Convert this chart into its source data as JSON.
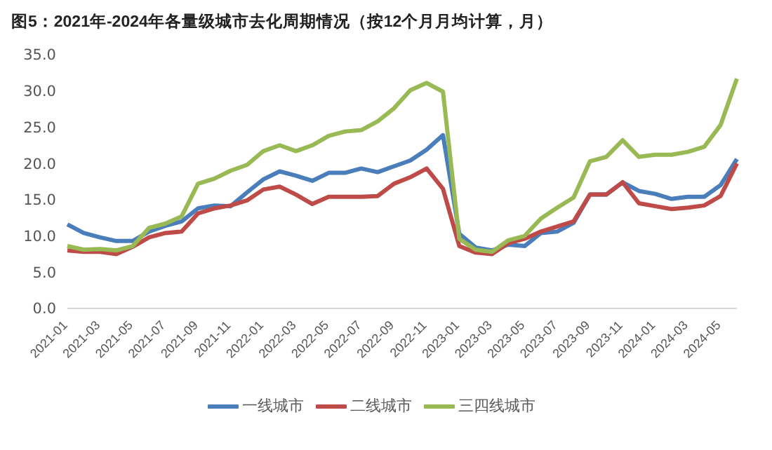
{
  "chart_data": {
    "type": "line",
    "title": "图5：2021年-2024年各量级城市去化周期情况（按12个月月均计算，月）",
    "categories": [
      "2021-01",
      null,
      "2021-03",
      null,
      "2021-05",
      null,
      "2021-07",
      null,
      "2021-09",
      null,
      "2021-11",
      null,
      "2022-01",
      null,
      "2022-03",
      null,
      "2022-05",
      null,
      "2022-07",
      null,
      "2022-09",
      null,
      "2022-11",
      null,
      "2023-01",
      null,
      "2023-03",
      null,
      "2023-05",
      null,
      "2023-07",
      null,
      "2023-09",
      null,
      "2023-11",
      null,
      "2024-01",
      null,
      "2024-03",
      null,
      "2024-05",
      null
    ],
    "series": [
      {
        "name": "一线城市",
        "color": "#4a7ebb",
        "values": [
          11.6,
          10.4,
          9.8,
          9.3,
          9.3,
          10.6,
          11.4,
          12.0,
          13.8,
          14.2,
          14.1,
          16.0,
          17.8,
          18.9,
          18.3,
          17.6,
          18.7,
          18.7,
          19.3,
          18.8,
          19.6,
          20.4,
          21.9,
          23.9,
          10.3,
          8.4,
          8.0,
          8.8,
          8.6,
          10.4,
          10.6,
          11.8,
          15.7,
          15.7,
          17.4,
          16.2,
          15.8,
          15.1,
          15.4,
          15.4,
          17.0,
          20.6
        ]
      },
      {
        "name": "二线城市",
        "color": "#be4b48",
        "values": [
          8.0,
          7.8,
          7.8,
          7.5,
          8.5,
          9.8,
          10.4,
          10.6,
          13.1,
          13.8,
          14.2,
          14.9,
          16.4,
          16.8,
          15.7,
          14.4,
          15.4,
          15.4,
          15.4,
          15.5,
          17.2,
          18.1,
          19.3,
          16.5,
          8.6,
          7.7,
          7.5,
          9.0,
          9.6,
          10.6,
          11.3,
          12.0,
          15.7,
          15.7,
          17.4,
          14.5,
          14.1,
          13.7,
          13.9,
          14.2,
          15.5,
          20.0
        ]
      },
      {
        "name": "三四线城市",
        "color": "#98b954",
        "values": [
          8.6,
          8.1,
          8.2,
          8.0,
          8.6,
          11.1,
          11.7,
          12.7,
          17.2,
          17.9,
          19.0,
          19.8,
          21.7,
          22.5,
          21.7,
          22.5,
          23.8,
          24.4,
          24.6,
          25.8,
          27.6,
          30.1,
          31.1,
          29.9,
          9.6,
          8.1,
          7.8,
          9.4,
          10.0,
          12.4,
          13.9,
          15.3,
          20.3,
          20.9,
          23.2,
          20.9,
          21.2,
          21.2,
          21.6,
          22.3,
          25.3,
          31.7
        ]
      }
    ],
    "ylim": [
      0,
      35
    ],
    "yticks": [
      {
        "value": 0,
        "label": "0.0"
      },
      {
        "value": 5,
        "label": "5.0"
      },
      {
        "value": 10,
        "label": "10.0"
      },
      {
        "value": 15,
        "label": "15.0"
      },
      {
        "value": 20,
        "label": "20.0"
      },
      {
        "value": 25,
        "label": "25.0"
      },
      {
        "value": 30,
        "label": "30.0"
      },
      {
        "value": 35,
        "label": "35.0"
      }
    ],
    "legend": "bottom",
    "marker": "none",
    "line_style": "solid"
  }
}
